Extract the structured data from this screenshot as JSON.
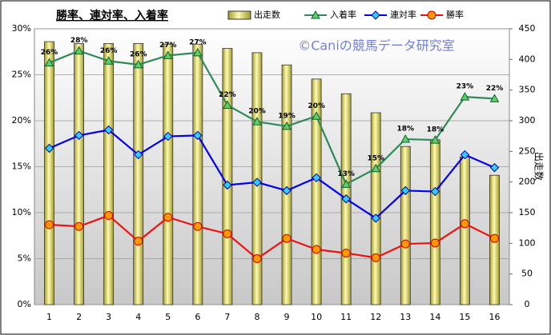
{
  "chart_data": {
    "type": "bar-line",
    "title": "勝率、連対率、入着率",
    "watermark": "©Caniの競馬データ研究室",
    "y2label": "出走数",
    "categories": [
      "1",
      "2",
      "3",
      "4",
      "5",
      "6",
      "7",
      "8",
      "9",
      "10",
      "11",
      "12",
      "13",
      "14",
      "15",
      "16"
    ],
    "ylim": [
      0,
      30
    ],
    "yticks": [
      {
        "value": 0,
        "label": "0%"
      },
      {
        "value": 5,
        "label": "5%"
      },
      {
        "value": 10,
        "label": "10%"
      },
      {
        "value": 15,
        "label": "15%"
      },
      {
        "value": 20,
        "label": "20%"
      },
      {
        "value": 25,
        "label": "25%"
      },
      {
        "value": 30,
        "label": "30%"
      }
    ],
    "y2lim": [
      0,
      450
    ],
    "y2ticks": [
      0,
      50,
      100,
      150,
      200,
      250,
      300,
      350,
      400,
      450
    ],
    "grid": true,
    "series": [
      {
        "name": "出走数",
        "type": "bar",
        "axis": "y2",
        "color": "#e8e070",
        "values": [
          429,
          426,
          426,
          426,
          425,
          425,
          418,
          411,
          391,
          368,
          344,
          313,
          258,
          269,
          241,
          211
        ]
      },
      {
        "name": "入着率",
        "type": "line",
        "marker": "triangle",
        "color": "#2e8b57",
        "axis": "y",
        "values": [
          26.3,
          27.6,
          26.5,
          26.1,
          27.1,
          27.4,
          21.7,
          19.9,
          19.4,
          20.5,
          13.1,
          14.8,
          18.0,
          17.9,
          22.6,
          22.4
        ],
        "value_labels": [
          "26%",
          "28%",
          "26%",
          "26%",
          "27%",
          "27%",
          "22%",
          "20%",
          "19%",
          "20%",
          "13%",
          "15%",
          "18%",
          "18%",
          "23%",
          "22%"
        ]
      },
      {
        "name": "連対率",
        "type": "line",
        "marker": "diamond",
        "color": "#0000ee",
        "axis": "y",
        "values": [
          17.0,
          18.4,
          19.0,
          16.3,
          18.3,
          18.4,
          13.0,
          13.3,
          12.4,
          13.8,
          11.5,
          9.4,
          12.4,
          12.3,
          16.3,
          14.9
        ]
      },
      {
        "name": "勝率",
        "type": "line",
        "marker": "circle",
        "color": "#ee1111",
        "axis": "y",
        "values": [
          8.7,
          8.5,
          9.7,
          6.9,
          9.5,
          8.5,
          7.7,
          5.0,
          7.2,
          6.0,
          5.6,
          5.1,
          6.6,
          6.7,
          8.8,
          7.2
        ]
      }
    ]
  }
}
